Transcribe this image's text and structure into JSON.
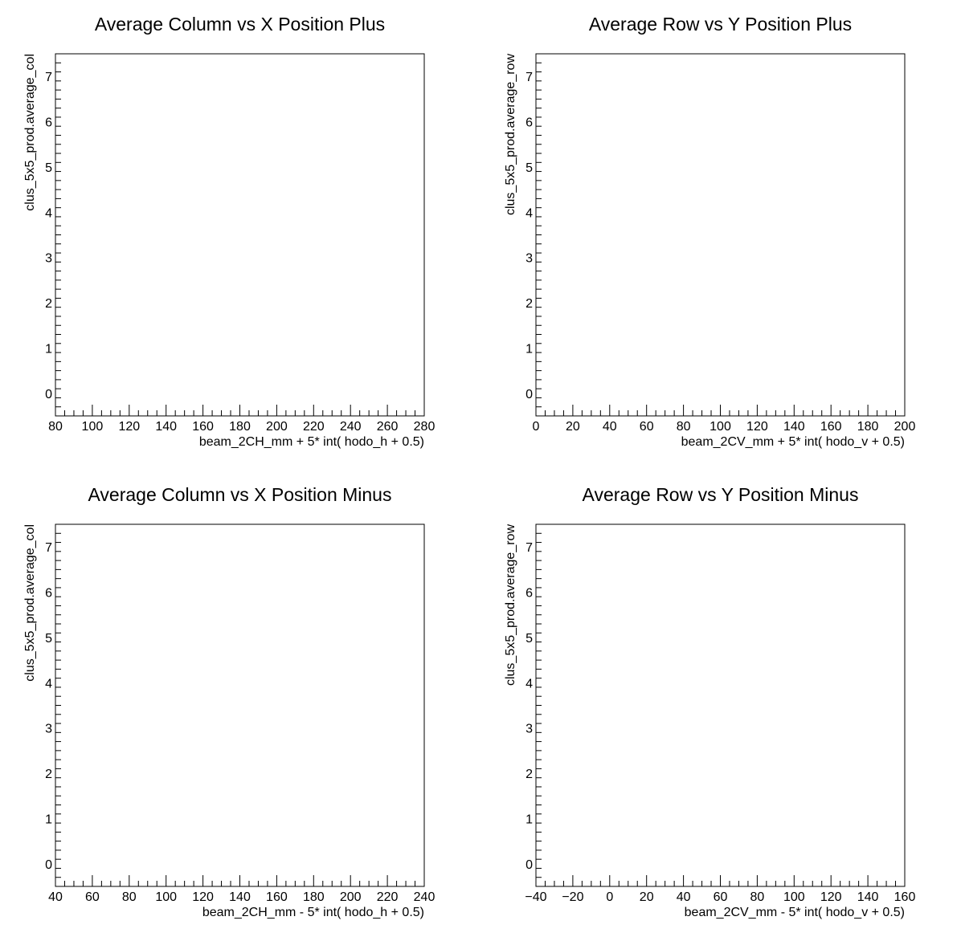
{
  "chart_data": [
    {
      "type": "scatter",
      "title": "Average Column vs X Position Plus",
      "xlabel": "beam_2CH_mm + 5* int( hodo_h + 0.5)",
      "ylabel": "clus_5x5_prod.average_col",
      "xlim": [
        80,
        280
      ],
      "ylim": [
        -0.5,
        7.5
      ],
      "x_ticks": [
        "80",
        "100",
        "120",
        "140",
        "160",
        "180",
        "200",
        "220",
        "240",
        "260",
        "280"
      ],
      "y_ticks": [
        "0",
        "1",
        "2",
        "3",
        "4",
        "5",
        "6",
        "7"
      ],
      "series": [
        {
          "x": [],
          "y": []
        }
      ],
      "grid": false
    },
    {
      "type": "scatter",
      "title": "Average Row vs Y Position Plus",
      "xlabel": "beam_2CV_mm + 5* int( hodo_v + 0.5)",
      "ylabel": "clus_5x5_prod.average_row",
      "xlim": [
        0,
        200
      ],
      "ylim": [
        -0.5,
        7.5
      ],
      "x_ticks": [
        "0",
        "20",
        "40",
        "60",
        "80",
        "100",
        "120",
        "140",
        "160",
        "180",
        "200"
      ],
      "y_ticks": [
        "0",
        "1",
        "2",
        "3",
        "4",
        "5",
        "6",
        "7"
      ],
      "series": [
        {
          "x": [],
          "y": []
        }
      ],
      "grid": false
    },
    {
      "type": "scatter",
      "title": "Average Column vs X Position Minus",
      "xlabel": "beam_2CH_mm - 5* int( hodo_h + 0.5)",
      "ylabel": "clus_5x5_prod.average_col",
      "xlim": [
        40,
        240
      ],
      "ylim": [
        -0.5,
        7.5
      ],
      "x_ticks": [
        "40",
        "60",
        "80",
        "100",
        "120",
        "140",
        "160",
        "180",
        "200",
        "220",
        "240"
      ],
      "y_ticks": [
        "0",
        "1",
        "2",
        "3",
        "4",
        "5",
        "6",
        "7"
      ],
      "series": [
        {
          "x": [],
          "y": []
        }
      ],
      "grid": false
    },
    {
      "type": "scatter",
      "title": "Average Row vs Y Position Minus",
      "xlabel": "beam_2CV_mm - 5* int( hodo_v + 0.5)",
      "ylabel": "clus_5x5_prod.average_row",
      "xlim": [
        -40,
        160
      ],
      "ylim": [
        -0.5,
        7.5
      ],
      "x_ticks": [
        "−40",
        "−20",
        "0",
        "20",
        "40",
        "60",
        "80",
        "100",
        "120",
        "140",
        "160"
      ],
      "y_ticks": [
        "0",
        "1",
        "2",
        "3",
        "4",
        "5",
        "6",
        "7"
      ],
      "series": [
        {
          "x": [],
          "y": []
        }
      ],
      "grid": false
    }
  ]
}
